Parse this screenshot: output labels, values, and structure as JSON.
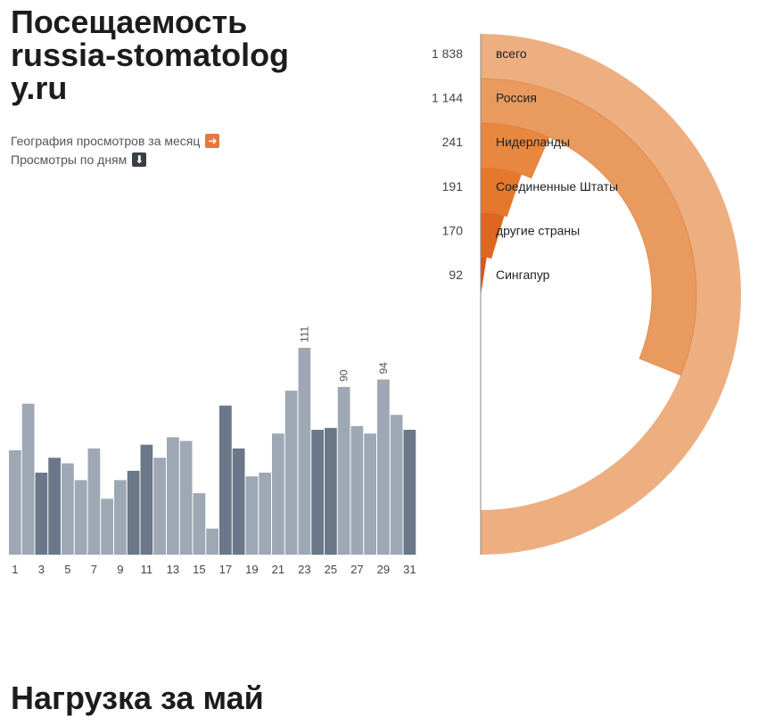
{
  "title": {
    "line1": "Посещаемость",
    "line2": "russia-stomatolog",
    "line3": "y.ru"
  },
  "links": [
    {
      "label": "География просмотров за месяц",
      "icon": "arrow-right-icon",
      "icon_color": "#e8773a"
    },
    {
      "label": "Просмотры по дням",
      "icon": "arrow-down-icon",
      "icon_color": "#3a3f45"
    }
  ],
  "section_heading": "Нагрузка за май",
  "chart_data": [
    {
      "type": "bar",
      "categories": [
        1,
        2,
        3,
        4,
        5,
        6,
        7,
        8,
        9,
        10,
        11,
        12,
        13,
        14,
        15,
        16,
        17,
        18,
        19,
        20,
        21,
        22,
        23,
        24,
        25,
        26,
        27,
        28,
        29,
        30,
        31
      ],
      "values": [
        56,
        81,
        44,
        52,
        49,
        40,
        57,
        30,
        40,
        45,
        59,
        52,
        63,
        61,
        33,
        14,
        80,
        57,
        42,
        44,
        65,
        88,
        111,
        67,
        68,
        90,
        69,
        65,
        94,
        75,
        67
      ],
      "tick_labels": [
        "1",
        "3",
        "5",
        "7",
        "9",
        "11",
        "13",
        "15",
        "17",
        "19",
        "21",
        "23",
        "25",
        "27",
        "29",
        "31"
      ],
      "data_labels": [
        {
          "day": 23,
          "value": "111"
        },
        {
          "day": 26,
          "value": "90"
        },
        {
          "day": 29,
          "value": "94"
        }
      ],
      "highlighted_days": [
        3,
        4,
        10,
        11,
        17,
        18,
        24,
        25,
        31
      ],
      "colors": {
        "normal": "#9ea8b4",
        "highlighted": "#6a7889"
      }
    },
    {
      "type": "pie",
      "series": [
        {
          "name": "всего",
          "value": 1838,
          "label": "1 838",
          "color": "#edae80"
        },
        {
          "name": "Россия",
          "value": 1144,
          "label": "1 144",
          "color": "#e89a5f"
        },
        {
          "name": "Нидерланды",
          "value": 241,
          "label": "241",
          "color": "#e8873f"
        },
        {
          "name": "Соединенные Штаты",
          "value": 191,
          "label": "191",
          "color": "#e4772c"
        },
        {
          "name": "другие страны",
          "value": 170,
          "label": "170",
          "color": "#df6620"
        },
        {
          "name": "Сингапур",
          "value": 92,
          "label": "92",
          "color": "#d9531a"
        }
      ]
    }
  ]
}
